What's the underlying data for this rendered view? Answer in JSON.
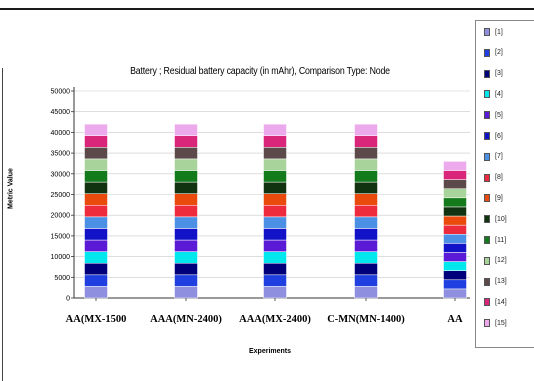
{
  "chart_data": {
    "type": "bar",
    "stacked": true,
    "title": "Battery ;  Residual battery capacity  (in mAhr), Comparison Type: Node",
    "xlabel": "Experiments",
    "ylabel": "Metric Value",
    "ylim": [
      0,
      50000
    ],
    "y_ticks": [
      "0",
      "5000",
      "10000",
      "15000",
      "20000",
      "25000",
      "30000",
      "35000",
      "40000",
      "45000",
      "50000"
    ],
    "grid": "horizontal",
    "legend_position": "right",
    "categories": [
      "AA(MX-1500",
      "AAA(MN-2400)",
      "AAA(MX-2400)",
      "C-MN(MN-1400)",
      "AA"
    ],
    "series": [
      {
        "name": "[1]",
        "color": "#8f8fe0",
        "values": [
          2800,
          2800,
          2800,
          2800,
          2200
        ]
      },
      {
        "name": "[2]",
        "color": "#1f3fe0",
        "values": [
          2800,
          2800,
          2800,
          2800,
          2200
        ]
      },
      {
        "name": "[3]",
        "color": "#00007a",
        "values": [
          2800,
          2800,
          2800,
          2800,
          2200
        ]
      },
      {
        "name": "[4]",
        "color": "#00e8ee",
        "values": [
          2800,
          2800,
          2800,
          2800,
          2200
        ]
      },
      {
        "name": "[5]",
        "color": "#5b1bd6",
        "values": [
          2800,
          2800,
          2800,
          2800,
          2200
        ]
      },
      {
        "name": "[6]",
        "color": "#1212c8",
        "values": [
          2800,
          2800,
          2800,
          2800,
          2200
        ]
      },
      {
        "name": "[7]",
        "color": "#4c90e6",
        "values": [
          2800,
          2800,
          2800,
          2800,
          2200
        ]
      },
      {
        "name": "[8]",
        "color": "#ee2b3d",
        "values": [
          2800,
          2800,
          2800,
          2800,
          2200
        ]
      },
      {
        "name": "[9]",
        "color": "#ea4a0c",
        "values": [
          2800,
          2800,
          2800,
          2800,
          2200
        ]
      },
      {
        "name": "[10]",
        "color": "#123310",
        "values": [
          2800,
          2800,
          2800,
          2800,
          2200
        ]
      },
      {
        "name": "[11]",
        "color": "#137b1c",
        "values": [
          2800,
          2800,
          2800,
          2800,
          2200
        ]
      },
      {
        "name": "[12]",
        "color": "#a8d39a",
        "values": [
          2800,
          2800,
          2800,
          2800,
          2200
        ]
      },
      {
        "name": "[13]",
        "color": "#5c4a4a",
        "values": [
          2800,
          2800,
          2800,
          2800,
          2200
        ]
      },
      {
        "name": "[14]",
        "color": "#d9257a",
        "values": [
          2800,
          2800,
          2800,
          2800,
          2200
        ]
      },
      {
        "name": "[15]",
        "color": "#ecaaec",
        "values": [
          2800,
          2800,
          2800,
          2800,
          2200
        ]
      }
    ]
  }
}
